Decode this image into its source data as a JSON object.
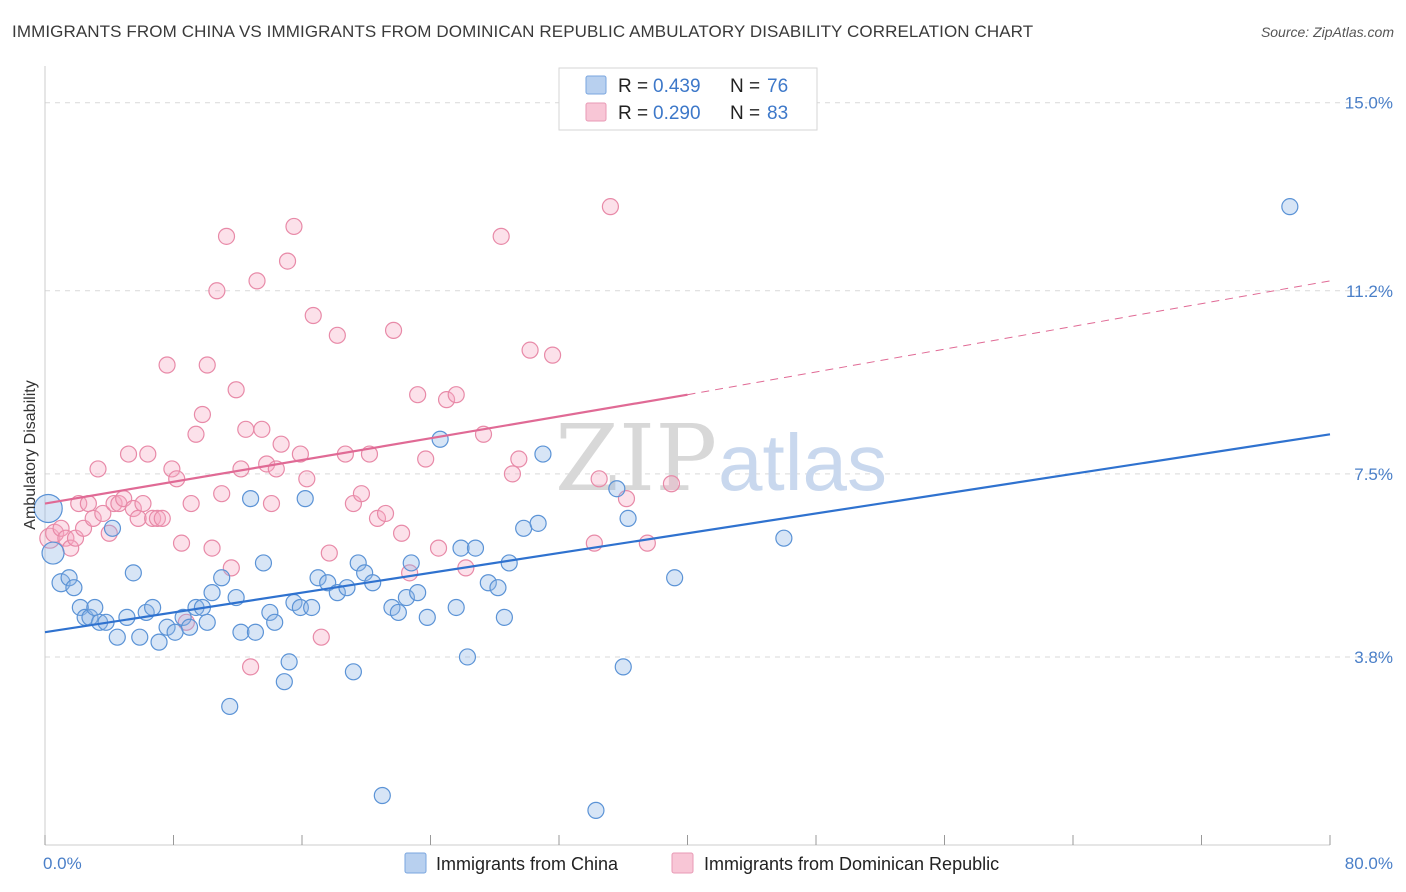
{
  "title": "IMMIGRANTS FROM CHINA VS IMMIGRANTS FROM DOMINICAN REPUBLIC AMBULATORY DISABILITY CORRELATION CHART",
  "source": "Source: ZipAtlas.com",
  "watermark": {
    "zip": "ZIP",
    "atlas": "atlas"
  },
  "colors": {
    "china_fill": "rgba(140,180,230,0.35)",
    "china_stroke": "#5b93d6",
    "china_line": "#2f72cf",
    "dom_fill": "rgba(245,170,195,0.35)",
    "dom_stroke": "#e88aa8",
    "dom_line": "#e06a95",
    "tick": "#4a7fc8",
    "grid": "#d9d9d9"
  },
  "legend": {
    "items": [
      {
        "r_label": "R =",
        "r_value": "0.439",
        "n_label": "N =",
        "n_value": "76"
      },
      {
        "r_label": "R =",
        "r_value": "0.290",
        "n_label": "N =",
        "n_value": "83"
      }
    ]
  },
  "chart_data": {
    "type": "scatter",
    "title": "IMMIGRANTS FROM CHINA VS IMMIGRANTS FROM DOMINICAN REPUBLIC AMBULATORY DISABILITY CORRELATION CHART",
    "xlabel": "",
    "ylabel": "Ambulatory Disability",
    "xlim": [
      0,
      80
    ],
    "ylim": [
      0,
      15.5
    ],
    "x_tick_labels": [
      "0.0%",
      "80.0%"
    ],
    "y_ticks": [
      3.8,
      7.5,
      11.2,
      15.0
    ],
    "y_tick_labels": [
      "3.8%",
      "7.5%",
      "11.2%",
      "15.0%"
    ],
    "series": [
      {
        "name": "Immigrants from China",
        "r": 0.439,
        "n": 76,
        "trend": {
          "x0": 0,
          "y0": 4.3,
          "x1": 80,
          "y1": 8.3
        },
        "points": [
          [
            0.2,
            6.8,
            14
          ],
          [
            0.5,
            5.9,
            11
          ],
          [
            1.0,
            5.3,
            9
          ],
          [
            1.5,
            5.4,
            8
          ],
          [
            1.8,
            5.2,
            8
          ],
          [
            2.2,
            4.8,
            8
          ],
          [
            2.5,
            4.6,
            8
          ],
          [
            2.8,
            4.6,
            8
          ],
          [
            3.1,
            4.8,
            8
          ],
          [
            3.4,
            4.5,
            8
          ],
          [
            3.8,
            4.5,
            8
          ],
          [
            4.2,
            6.4,
            8
          ],
          [
            4.5,
            4.2,
            8
          ],
          [
            5.1,
            4.6,
            8
          ],
          [
            5.5,
            5.5,
            8
          ],
          [
            5.9,
            4.2,
            8
          ],
          [
            6.3,
            4.7,
            8
          ],
          [
            6.7,
            4.8,
            8
          ],
          [
            7.1,
            4.1,
            8
          ],
          [
            7.6,
            4.4,
            8
          ],
          [
            8.1,
            4.3,
            8
          ],
          [
            8.6,
            4.6,
            8
          ],
          [
            9.0,
            4.4,
            8
          ],
          [
            9.4,
            4.8,
            8
          ],
          [
            9.8,
            4.8,
            8
          ],
          [
            10.1,
            4.5,
            8
          ],
          [
            10.4,
            5.1,
            8
          ],
          [
            11.0,
            5.4,
            8
          ],
          [
            11.5,
            2.8,
            8
          ],
          [
            11.9,
            5.0,
            8
          ],
          [
            12.2,
            4.3,
            8
          ],
          [
            12.8,
            7.0,
            8
          ],
          [
            13.1,
            4.3,
            8
          ],
          [
            13.6,
            5.7,
            8
          ],
          [
            14.0,
            4.7,
            8
          ],
          [
            14.3,
            4.5,
            8
          ],
          [
            14.9,
            3.3,
            8
          ],
          [
            15.2,
            3.7,
            8
          ],
          [
            15.5,
            4.9,
            8
          ],
          [
            15.9,
            4.8,
            8
          ],
          [
            16.2,
            7.0,
            8
          ],
          [
            16.6,
            4.8,
            8
          ],
          [
            17.0,
            5.4,
            8
          ],
          [
            17.6,
            5.3,
            8
          ],
          [
            18.2,
            5.1,
            8
          ],
          [
            18.8,
            5.2,
            8
          ],
          [
            19.2,
            3.5,
            8
          ],
          [
            19.5,
            5.7,
            8
          ],
          [
            19.9,
            5.5,
            8
          ],
          [
            20.4,
            5.3,
            8
          ],
          [
            21.0,
            1.0,
            8
          ],
          [
            21.6,
            4.8,
            8
          ],
          [
            22.0,
            4.7,
            8
          ],
          [
            22.5,
            5.0,
            8
          ],
          [
            22.8,
            5.7,
            8
          ],
          [
            23.2,
            5.1,
            8
          ],
          [
            23.8,
            4.6,
            8
          ],
          [
            24.6,
            8.2,
            8
          ],
          [
            25.6,
            4.8,
            8
          ],
          [
            25.9,
            6.0,
            8
          ],
          [
            26.3,
            3.8,
            8
          ],
          [
            26.8,
            6.0,
            8
          ],
          [
            27.6,
            5.3,
            8
          ],
          [
            28.2,
            5.2,
            8
          ],
          [
            28.6,
            4.6,
            8
          ],
          [
            28.9,
            5.7,
            8
          ],
          [
            29.8,
            6.4,
            8
          ],
          [
            30.7,
            6.5,
            8
          ],
          [
            31.0,
            7.9,
            8
          ],
          [
            34.3,
            0.7,
            8
          ],
          [
            35.6,
            7.2,
            8
          ],
          [
            36.0,
            3.6,
            8
          ],
          [
            36.3,
            6.6,
            8
          ],
          [
            39.2,
            5.4,
            8
          ],
          [
            46.0,
            6.2,
            8
          ],
          [
            77.5,
            12.9,
            8
          ]
        ]
      },
      {
        "name": "Immigrants from Dominican Republic",
        "r": 0.29,
        "n": 83,
        "trend": {
          "x0": 0,
          "y0": 6.9,
          "x1": 40,
          "y1": 9.1,
          "dash_x1": 80,
          "dash_y1": 11.4
        },
        "points": [
          [
            0.3,
            6.2,
            10
          ],
          [
            0.6,
            6.3,
            9
          ],
          [
            1.0,
            6.4,
            8
          ],
          [
            1.3,
            6.2,
            8
          ],
          [
            1.6,
            6.0,
            8
          ],
          [
            1.9,
            6.2,
            8
          ],
          [
            2.1,
            6.9,
            8
          ],
          [
            2.4,
            6.4,
            8
          ],
          [
            2.7,
            6.9,
            8
          ],
          [
            3.0,
            6.6,
            8
          ],
          [
            3.3,
            7.6,
            8
          ],
          [
            3.6,
            6.7,
            8
          ],
          [
            4.0,
            6.3,
            8
          ],
          [
            4.3,
            6.9,
            8
          ],
          [
            4.6,
            6.9,
            8
          ],
          [
            4.9,
            7.0,
            8
          ],
          [
            5.2,
            7.9,
            8
          ],
          [
            5.5,
            6.8,
            8
          ],
          [
            5.8,
            6.6,
            8
          ],
          [
            6.1,
            6.9,
            8
          ],
          [
            6.4,
            7.9,
            8
          ],
          [
            6.7,
            6.6,
            8
          ],
          [
            7.0,
            6.6,
            8
          ],
          [
            7.3,
            6.6,
            8
          ],
          [
            7.6,
            9.7,
            8
          ],
          [
            7.9,
            7.6,
            8
          ],
          [
            8.2,
            7.4,
            8
          ],
          [
            8.5,
            6.1,
            8
          ],
          [
            8.8,
            4.5,
            8
          ],
          [
            9.1,
            6.9,
            8
          ],
          [
            9.4,
            8.3,
            8
          ],
          [
            9.8,
            8.7,
            8
          ],
          [
            10.1,
            9.7,
            8
          ],
          [
            10.4,
            6.0,
            8
          ],
          [
            10.7,
            11.2,
            8
          ],
          [
            11.0,
            7.1,
            8
          ],
          [
            11.3,
            12.3,
            8
          ],
          [
            11.6,
            5.6,
            8
          ],
          [
            11.9,
            9.2,
            8
          ],
          [
            12.2,
            7.6,
            8
          ],
          [
            12.5,
            8.4,
            8
          ],
          [
            12.8,
            3.6,
            8
          ],
          [
            13.2,
            11.4,
            8
          ],
          [
            13.5,
            8.4,
            8
          ],
          [
            13.8,
            7.7,
            8
          ],
          [
            14.1,
            6.9,
            8
          ],
          [
            14.4,
            7.6,
            8
          ],
          [
            14.7,
            8.1,
            8
          ],
          [
            15.1,
            11.8,
            8
          ],
          [
            15.5,
            12.5,
            8
          ],
          [
            15.9,
            7.9,
            8
          ],
          [
            16.3,
            7.4,
            8
          ],
          [
            16.7,
            10.7,
            8
          ],
          [
            17.2,
            4.2,
            8
          ],
          [
            17.7,
            5.9,
            8
          ],
          [
            18.2,
            10.3,
            8
          ],
          [
            18.7,
            7.9,
            8
          ],
          [
            19.2,
            6.9,
            8
          ],
          [
            19.7,
            7.1,
            8
          ],
          [
            20.2,
            7.9,
            8
          ],
          [
            20.7,
            6.6,
            8
          ],
          [
            21.2,
            6.7,
            8
          ],
          [
            21.7,
            10.4,
            8
          ],
          [
            22.2,
            6.3,
            8
          ],
          [
            22.7,
            5.5,
            8
          ],
          [
            23.2,
            9.1,
            8
          ],
          [
            23.7,
            7.8,
            8
          ],
          [
            24.5,
            6.0,
            8
          ],
          [
            25.0,
            9.0,
            8
          ],
          [
            25.6,
            9.1,
            8
          ],
          [
            26.2,
            5.6,
            8
          ],
          [
            27.3,
            8.3,
            8
          ],
          [
            28.4,
            12.3,
            8
          ],
          [
            29.1,
            7.5,
            8
          ],
          [
            29.5,
            7.8,
            8
          ],
          [
            30.2,
            10.0,
            8
          ],
          [
            31.6,
            9.9,
            8
          ],
          [
            34.2,
            6.1,
            8
          ],
          [
            34.5,
            7.4,
            8
          ],
          [
            35.2,
            12.9,
            8
          ],
          [
            36.2,
            7.0,
            8
          ],
          [
            37.5,
            6.1,
            8
          ],
          [
            39.0,
            7.3,
            8
          ]
        ]
      }
    ]
  },
  "bottom_legend": [
    "Immigrants from China",
    "Immigrants from Dominican Republic"
  ]
}
